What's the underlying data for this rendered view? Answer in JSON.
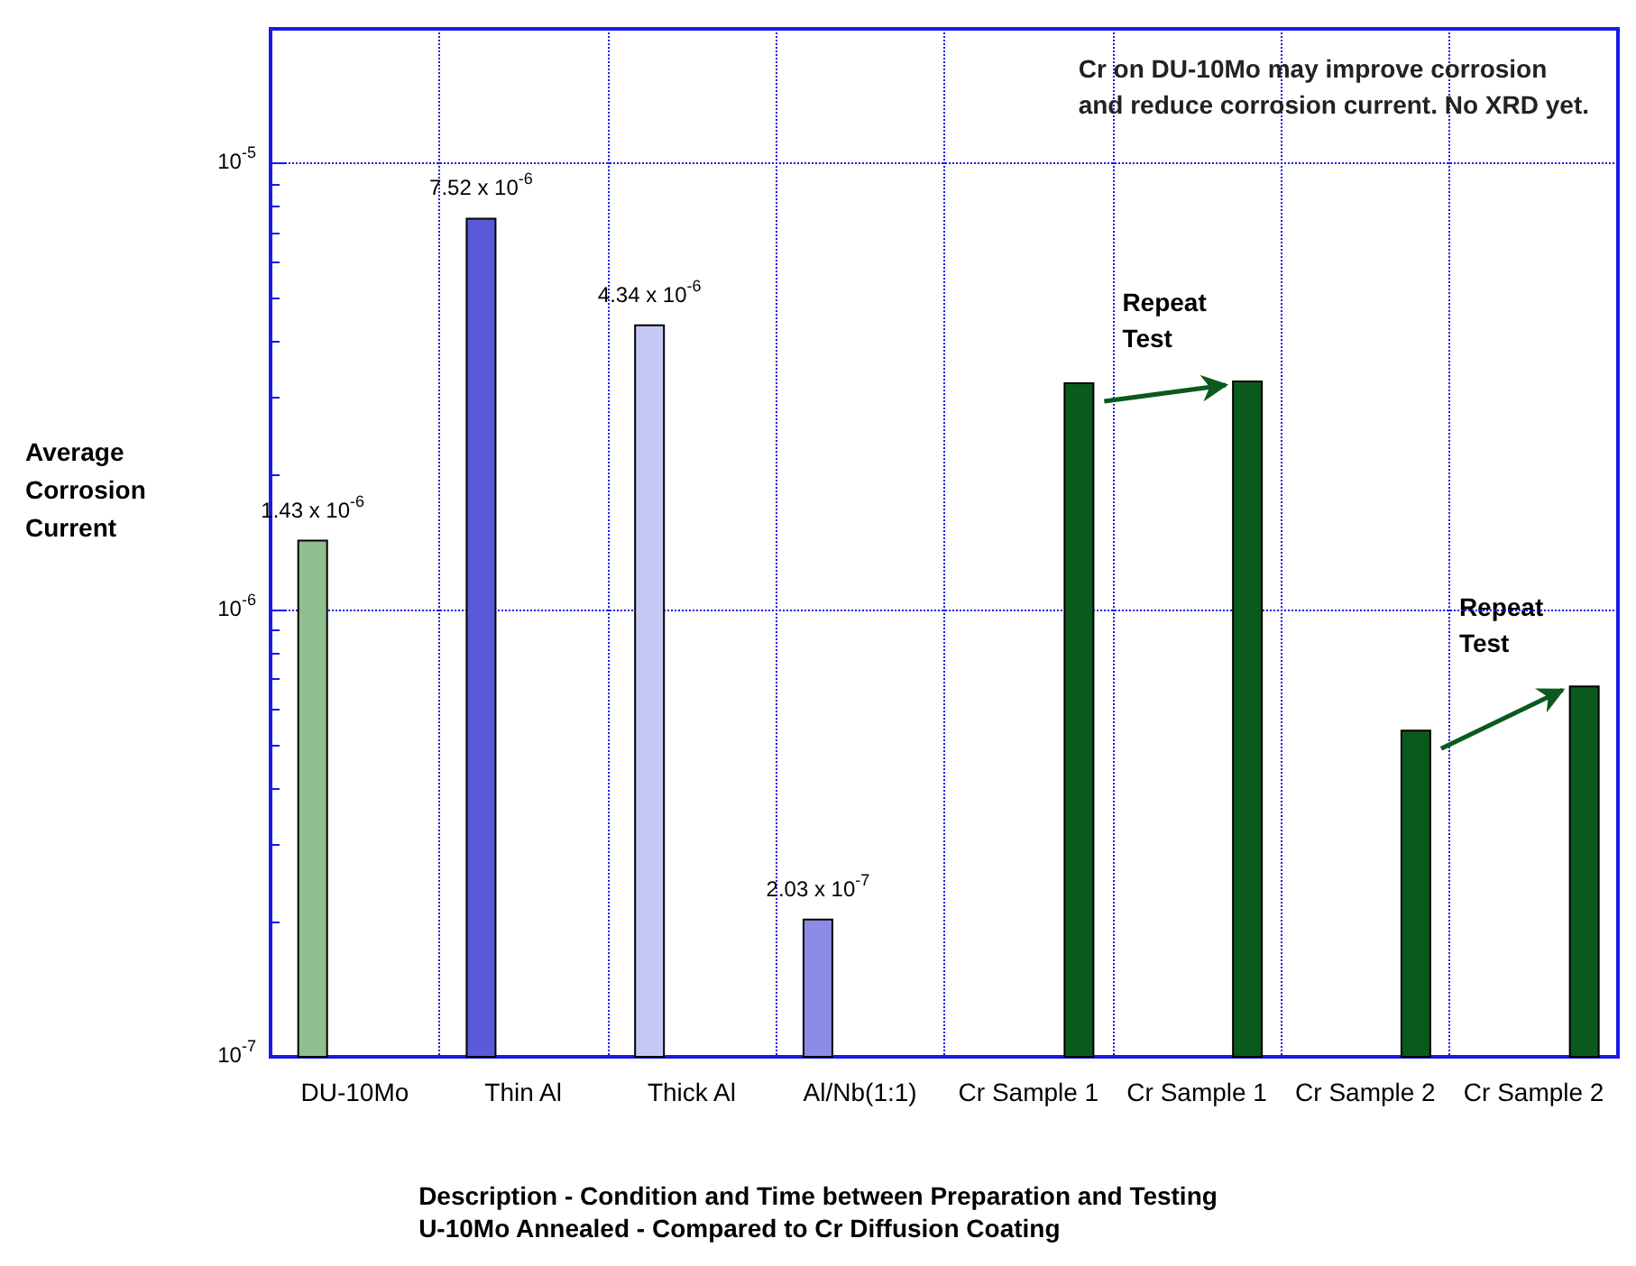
{
  "chart_data": {
    "type": "bar",
    "xlabel": "Description - Condition and Time between Preparation and Testing\nU-10Mo Annealed - Compared to Cr Diffusion Coating",
    "ylabel": "Average Corrosion Current",
    "categories": [
      "DU-10Mo",
      "Thin Al",
      "Thick Al",
      "Al/Nb(1:1)",
      "Cr Sample 1",
      "Cr Sample 1",
      "Cr Sample 2",
      "Cr Sample 2"
    ],
    "series": [
      {
        "colors": [
          "#8fbf8f",
          "#5a5ad8",
          "#c4c8f4",
          "#8c8ce6",
          null,
          null,
          null,
          null
        ],
        "values": [
          1.43e-06,
          7.52e-06,
          4.34e-06,
          2.03e-07,
          null,
          null,
          null,
          null
        ],
        "value_labels": [
          "1.43 x 10$^{-6}$",
          "7.52 x 10$^{-6}$",
          "4.34 x 10$^{-6}$",
          "2.03 x 10$^{-7}$",
          null,
          null,
          null,
          null
        ]
      },
      {
        "color": "#0a5a1e",
        "values": [
          null,
          null,
          null,
          null,
          3.22e-06,
          3.25e-06,
          5.37e-07,
          6.75e-07
        ]
      }
    ],
    "log": true,
    "ylim": [
      1e-07,
      2e-05
    ],
    "yticks": [
      {
        "value": 1e-07,
        "label": "10$^{-7}$"
      },
      {
        "value": 1e-06,
        "label": "10$^{-6}$"
      },
      {
        "value": 1e-05,
        "label": "10$^{-5}$"
      }
    ],
    "grid": true,
    "annotations": [
      "Cr on DU-10Mo may improve corrosion\nand reduce corrosion current. No XRD yet.",
      "Repeat\nTest",
      "Repeat\nTest"
    ]
  }
}
